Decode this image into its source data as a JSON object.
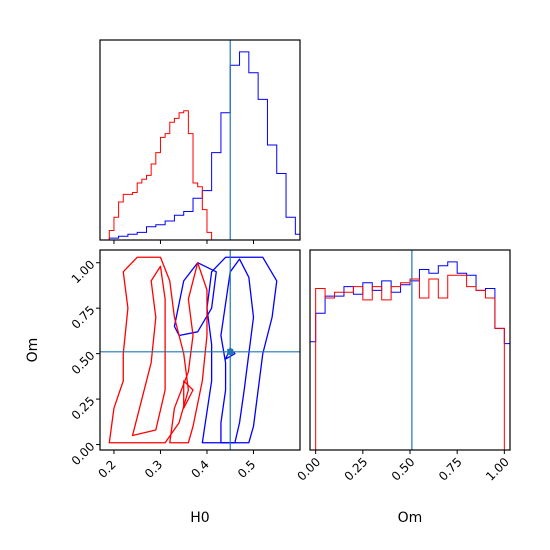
{
  "chart_data": {
    "type": "corner",
    "parameters": [
      "H0",
      "Om"
    ],
    "truths": {
      "H0": 0.45,
      "Om": 0.51
    },
    "colors": {
      "blue": "#0000ff",
      "red": "#ff0000",
      "truth": "#1f77b4"
    },
    "axes": {
      "h0_hist": {
        "xlim": [
          0.17,
          0.6
        ],
        "series": [
          {
            "color": "#0000ff",
            "edges": [
              0.19,
              0.21,
              0.23,
              0.25,
              0.27,
              0.29,
              0.31,
              0.33,
              0.35,
              0.37,
              0.39,
              0.41,
              0.43,
              0.45,
              0.47,
              0.49,
              0.51,
              0.53,
              0.55,
              0.57,
              0.59,
              0.6
            ],
            "counts": [
              0.01,
              0.02,
              0.03,
              0.04,
              0.07,
              0.08,
              0.1,
              0.13,
              0.15,
              0.22,
              0.26,
              0.46,
              0.67,
              0.92,
              0.99,
              0.88,
              0.74,
              0.5,
              0.35,
              0.12,
              0.03
            ]
          },
          {
            "color": "#ff0000",
            "edges": [
              0.19,
              0.2,
              0.21,
              0.22,
              0.23,
              0.24,
              0.25,
              0.26,
              0.27,
              0.28,
              0.29,
              0.3,
              0.31,
              0.32,
              0.33,
              0.34,
              0.35,
              0.36,
              0.37,
              0.38,
              0.39,
              0.4,
              0.41,
              0.42
            ],
            "counts": [
              0.05,
              0.12,
              0.2,
              0.24,
              0.24,
              0.25,
              0.3,
              0.32,
              0.34,
              0.4,
              0.46,
              0.54,
              0.56,
              0.62,
              0.64,
              0.67,
              0.68,
              0.56,
              0.3,
              0.28,
              0.16,
              0.04,
              0.0
            ]
          }
        ]
      },
      "om_hist": {
        "xlim": [
          -0.03,
          1.03
        ],
        "xticks": [
          "0.00",
          "0.25",
          "0.50",
          "0.75",
          "1.00"
        ],
        "xtick_values": [
          0,
          0.25,
          0.5,
          0.75,
          1.0
        ],
        "xlabel": "Om",
        "series": [
          {
            "color": "#0000ff",
            "edges": [
              -0.03,
              0.0,
              0.05,
              0.1,
              0.15,
              0.2,
              0.25,
              0.3,
              0.35,
              0.4,
              0.45,
              0.5,
              0.55,
              0.6,
              0.65,
              0.7,
              0.75,
              0.8,
              0.85,
              0.9,
              0.95,
              1.0,
              1.03
            ],
            "counts": [
              0.57,
              0.72,
              0.81,
              0.81,
              0.86,
              0.82,
              0.88,
              0.84,
              0.89,
              0.83,
              0.87,
              0.89,
              0.95,
              0.93,
              0.97,
              0.99,
              0.93,
              0.92,
              0.84,
              0.85,
              0.64,
              0.56
            ]
          },
          {
            "color": "#ff0000",
            "edges": [
              0.0,
              0.05,
              0.1,
              0.15,
              0.2,
              0.25,
              0.3,
              0.35,
              0.4,
              0.45,
              0.5,
              0.55,
              0.6,
              0.65,
              0.7,
              0.75,
              0.8,
              0.85,
              0.9,
              0.95,
              1.0
            ],
            "counts": [
              0.85,
              0.8,
              0.83,
              0.83,
              0.86,
              0.79,
              0.86,
              0.79,
              0.86,
              0.88,
              0.9,
              0.8,
              0.9,
              0.8,
              0.92,
              0.92,
              0.86,
              0.84,
              0.8,
              0.64
            ]
          }
        ]
      },
      "joint": {
        "xlim": [
          0.17,
          0.6
        ],
        "ylim": [
          -0.03,
          1.07
        ],
        "xticks": [
          "0.2",
          "0.3",
          "0.4",
          "0.5"
        ],
        "xtick_values": [
          0.2,
          0.3,
          0.4,
          0.5
        ],
        "yticks": [
          "0.00",
          "0.25",
          "0.50",
          "0.75",
          "1.00"
        ],
        "ytick_values": [
          0,
          0.25,
          0.5,
          0.75,
          1.0
        ],
        "xlabel": "H0",
        "ylabel": "Om",
        "contours": [
          {
            "color": "#0000ff",
            "points": [
              [
                0.43,
                0.01
              ],
              [
                0.43,
                0.12
              ],
              [
                0.44,
                0.3
              ],
              [
                0.44,
                0.45
              ],
              [
                0.43,
                0.6
              ],
              [
                0.45,
                0.95
              ],
              [
                0.47,
                1.02
              ],
              [
                0.49,
                0.92
              ],
              [
                0.5,
                0.7
              ],
              [
                0.49,
                0.5
              ],
              [
                0.48,
                0.3
              ],
              [
                0.47,
                0.12
              ],
              [
                0.46,
                0.01
              ]
            ]
          },
          {
            "color": "#0000ff",
            "points": [
              [
                0.39,
                0.01
              ],
              [
                0.4,
                0.18
              ],
              [
                0.41,
                0.35
              ],
              [
                0.41,
                0.55
              ],
              [
                0.4,
                0.75
              ],
              [
                0.41,
                0.95
              ],
              [
                0.44,
                1.03
              ],
              [
                0.52,
                1.03
              ],
              [
                0.55,
                0.9
              ],
              [
                0.54,
                0.7
              ],
              [
                0.52,
                0.5
              ],
              [
                0.51,
                0.3
              ],
              [
                0.5,
                0.1
              ],
              [
                0.49,
                0.01
              ]
            ]
          },
          {
            "color": "#0000ff",
            "points": [
              [
                0.33,
                0.65
              ],
              [
                0.35,
                0.9
              ],
              [
                0.38,
                1.0
              ],
              [
                0.42,
                0.95
              ],
              [
                0.41,
                0.75
              ],
              [
                0.38,
                0.62
              ],
              [
                0.34,
                0.6
              ]
            ]
          },
          {
            "color": "#0000ff",
            "points": [
              [
                0.44,
                0.47
              ],
              [
                0.45,
                0.53
              ],
              [
                0.46,
                0.5
              ]
            ]
          },
          {
            "color": "#ff0000",
            "points": [
              [
                0.19,
                0.01
              ],
              [
                0.2,
                0.2
              ],
              [
                0.22,
                0.35
              ],
              [
                0.22,
                0.5
              ],
              [
                0.23,
                0.75
              ],
              [
                0.22,
                0.95
              ],
              [
                0.25,
                1.03
              ],
              [
                0.3,
                1.03
              ],
              [
                0.32,
                0.9
              ],
              [
                0.33,
                0.7
              ],
              [
                0.35,
                0.5
              ],
              [
                0.36,
                0.3
              ],
              [
                0.34,
                0.12
              ],
              [
                0.31,
                0.01
              ]
            ]
          },
          {
            "color": "#ff0000",
            "points": [
              [
                0.24,
                0.05
              ],
              [
                0.26,
                0.25
              ],
              [
                0.28,
                0.45
              ],
              [
                0.29,
                0.7
              ],
              [
                0.28,
                0.9
              ],
              [
                0.3,
                0.98
              ],
              [
                0.31,
                0.8
              ],
              [
                0.31,
                0.55
              ],
              [
                0.31,
                0.3
              ],
              [
                0.29,
                0.08
              ]
            ]
          },
          {
            "color": "#ff0000",
            "points": [
              [
                0.32,
                0.01
              ],
              [
                0.33,
                0.2
              ],
              [
                0.36,
                0.4
              ],
              [
                0.37,
                0.6
              ],
              [
                0.36,
                0.8
              ],
              [
                0.38,
                1.0
              ],
              [
                0.4,
                0.85
              ],
              [
                0.4,
                0.6
              ],
              [
                0.39,
                0.35
              ],
              [
                0.37,
                0.1
              ],
              [
                0.36,
                0.01
              ]
            ]
          },
          {
            "color": "#ff0000",
            "points": [
              [
                0.35,
                0.2
              ],
              [
                0.35,
                0.35
              ],
              [
                0.37,
                0.3
              ]
            ]
          }
        ]
      }
    }
  }
}
